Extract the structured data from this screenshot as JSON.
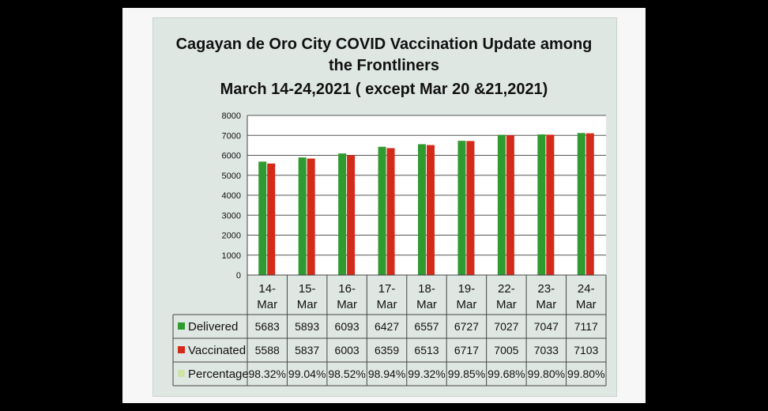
{
  "chart_data": {
    "type": "bar",
    "title_lines": [
      "Cagayan de Oro City COVID Vaccination Update among",
      "the Frontliners",
      "March 14-24,2021 ( except Mar 20 &21,2021)"
    ],
    "categories": [
      [
        "14-",
        "Mar"
      ],
      [
        "15-",
        "Mar"
      ],
      [
        "16-",
        "Mar"
      ],
      [
        "17-",
        "Mar"
      ],
      [
        "18-",
        "Mar"
      ],
      [
        "19-",
        "Mar"
      ],
      [
        "22-",
        "Mar"
      ],
      [
        "23-",
        "Mar"
      ],
      [
        "24-",
        "Mar"
      ]
    ],
    "ylim": [
      0,
      8000
    ],
    "yticks": [
      0,
      1000,
      2000,
      3000,
      4000,
      5000,
      6000,
      7000,
      8000
    ],
    "grid": true,
    "legend_placement": "data-table-rows",
    "series": [
      {
        "name": "Delivered",
        "color": "#2f9a2f",
        "values": [
          5683,
          5893,
          6093,
          6427,
          6557,
          6727,
          7027,
          7047,
          7117
        ]
      },
      {
        "name": "Vaccinated",
        "color": "#d42a1a",
        "values": [
          5588,
          5837,
          6003,
          6359,
          6513,
          6717,
          7005,
          7033,
          7103
        ]
      }
    ],
    "table_rows": [
      {
        "name": "Delivered",
        "color": "#2f9a2f",
        "cells": [
          "5683",
          "5893",
          "6093",
          "6427",
          "6557",
          "6727",
          "7027",
          "7047",
          "7117"
        ]
      },
      {
        "name": "Vaccinated",
        "color": "#d42a1a",
        "cells": [
          "5588",
          "5837",
          "6003",
          "6359",
          "6513",
          "6717",
          "7005",
          "7033",
          "7103"
        ]
      },
      {
        "name": "Percentage",
        "color": "#cfe3a8",
        "cells": [
          "98.32%",
          "99.04%",
          "98.52%",
          "98.94%",
          "99.32%",
          "99.85%",
          "99.68%",
          "99.80%",
          "99.80%"
        ]
      }
    ]
  }
}
